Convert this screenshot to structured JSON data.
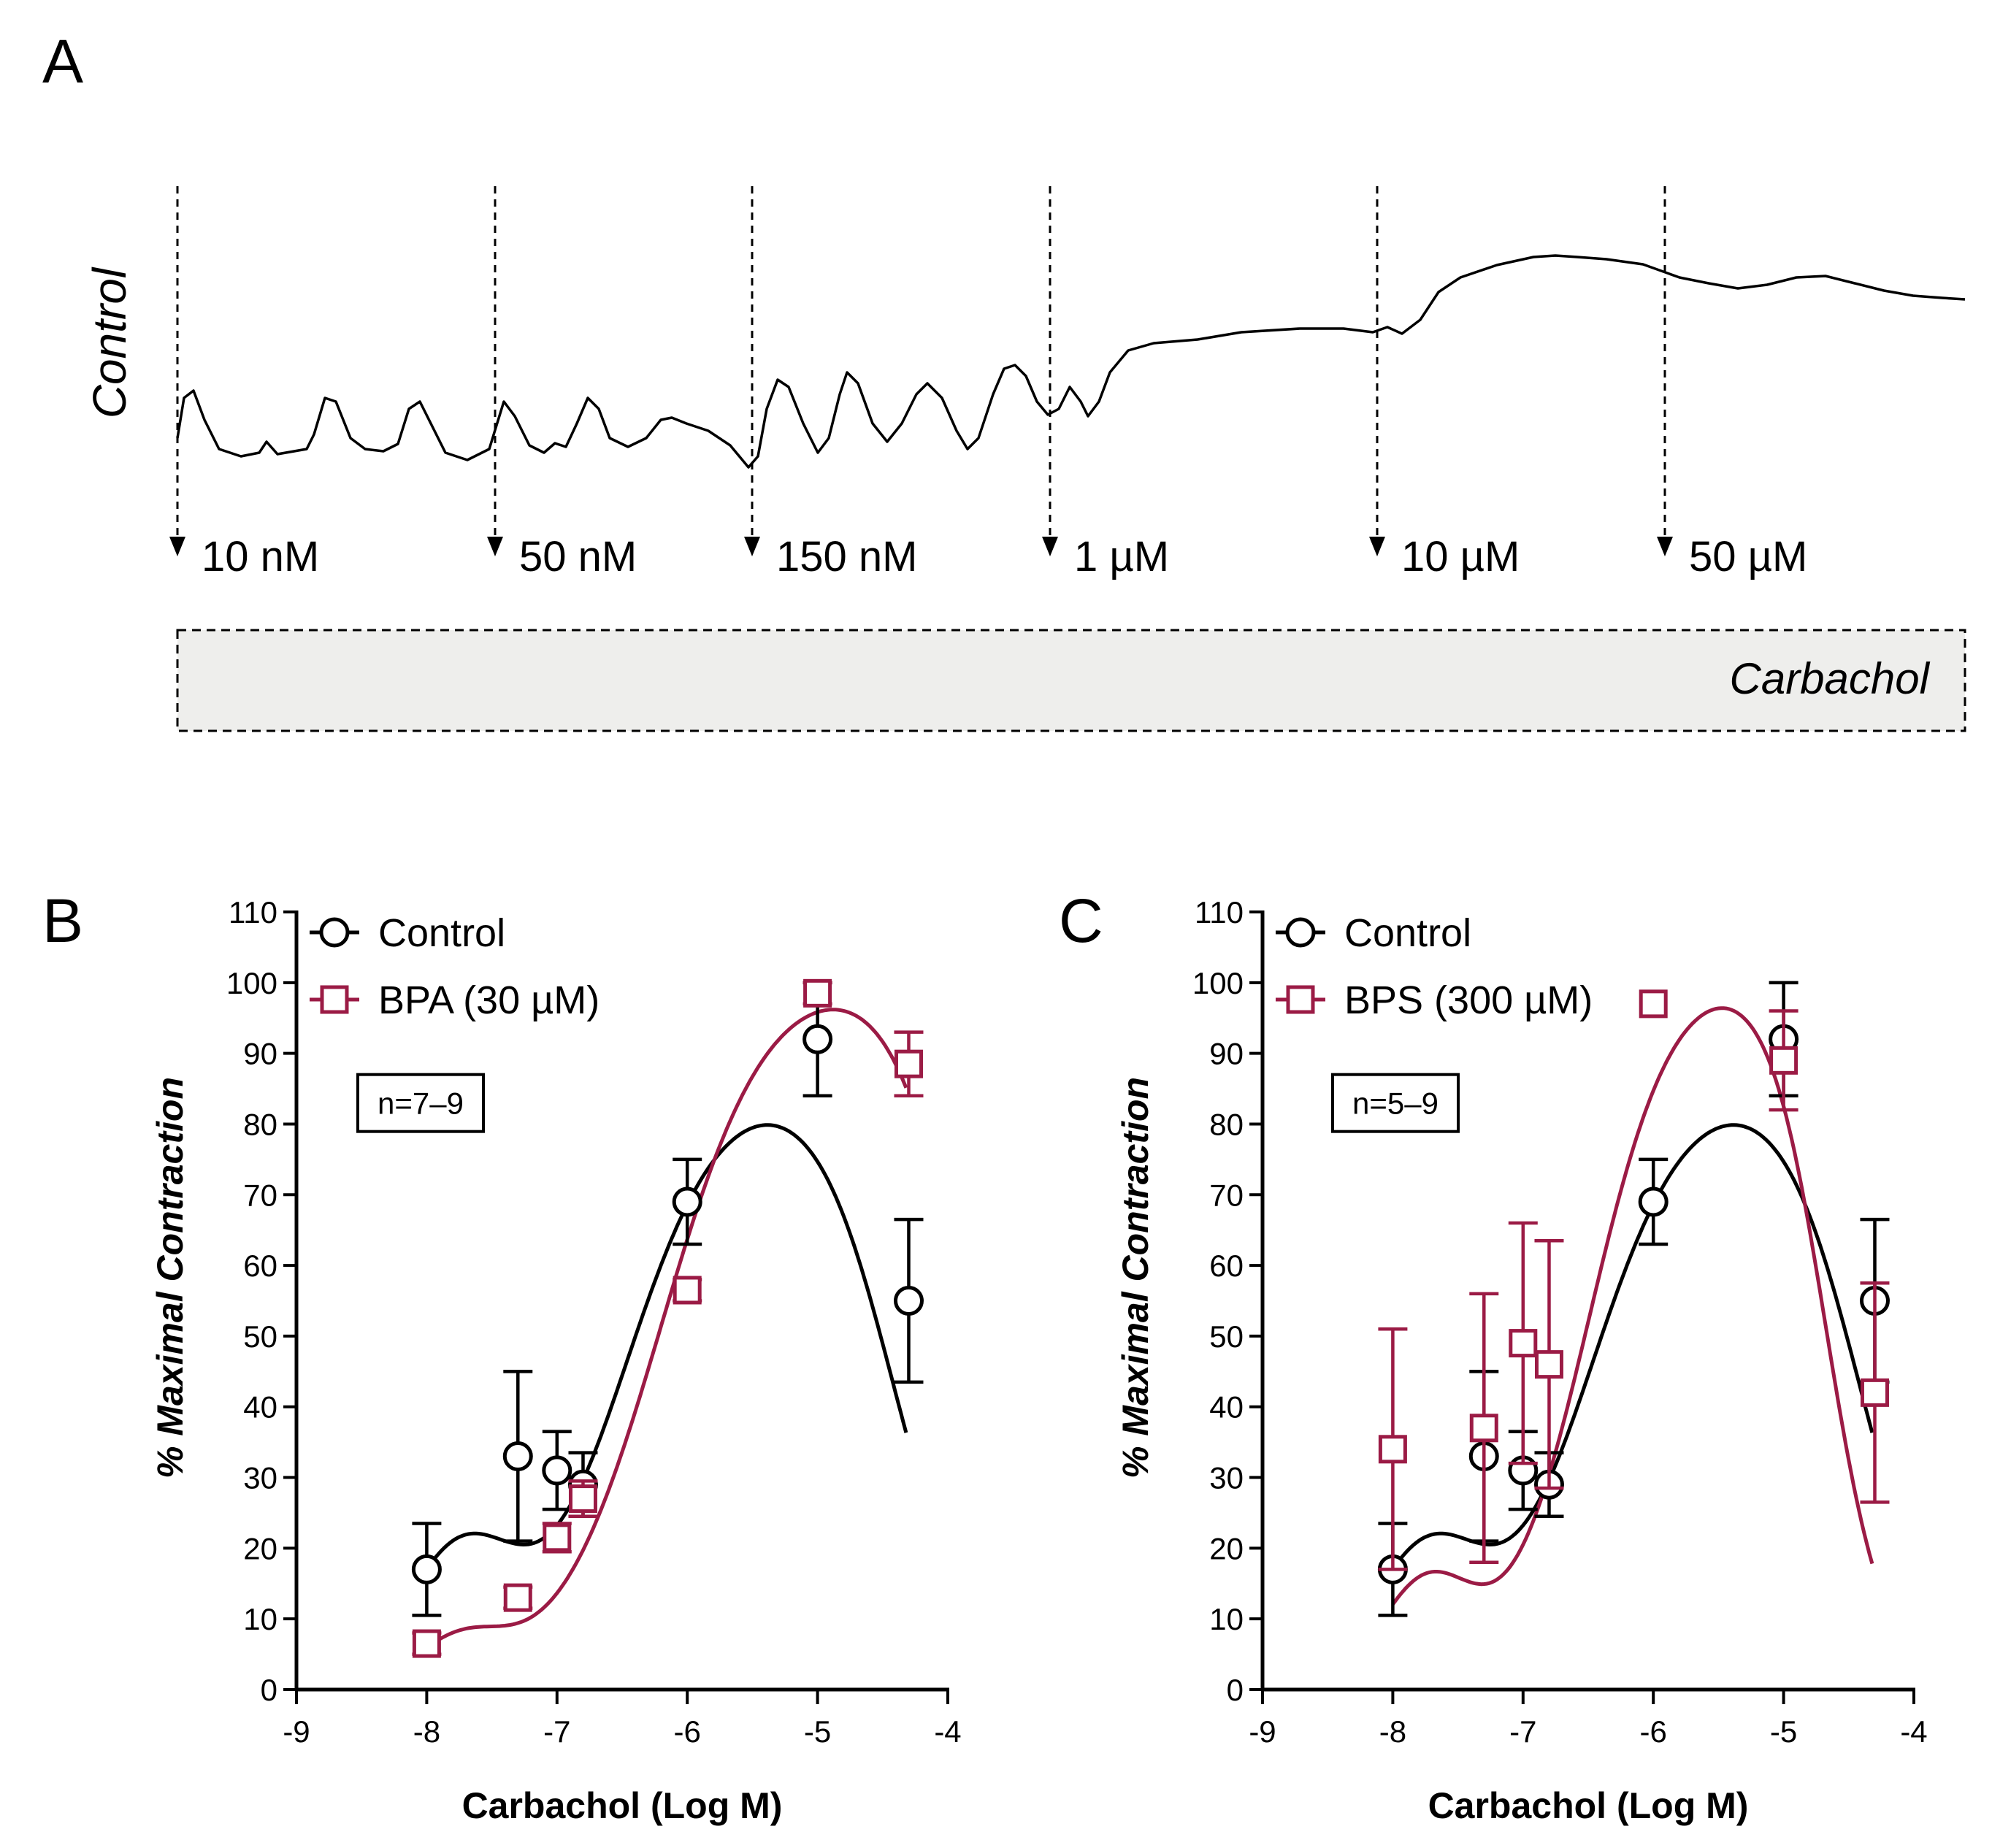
{
  "colors": {
    "control": "#000000",
    "treatment": "#9b1b45",
    "bar_fill": "#eeeeec"
  },
  "panel_a": {
    "letter": "A",
    "trace_label": "Control",
    "bar_label": "Carbachol",
    "concentrations": [
      "10 nM",
      "50 nM",
      "150 nM",
      "1 µM",
      "10 µM",
      "50 µM"
    ]
  },
  "chart_data": [
    {
      "panel": "B",
      "type": "scatter",
      "xlabel": "Carbachol (Log M)",
      "ylabel": "% Maximal Contraction",
      "xlim": [
        -9,
        -4
      ],
      "ylim": [
        0,
        110
      ],
      "xticks": [
        "-9",
        "-8",
        "-7",
        "-6",
        "-5",
        "-4"
      ],
      "yticks": [
        "0",
        "10",
        "20",
        "30",
        "40",
        "50",
        "60",
        "70",
        "80",
        "90",
        "100",
        "110"
      ],
      "annotation": "n=7–9",
      "legend_position": "top-left",
      "series": [
        {
          "name": "Control",
          "marker": "circle",
          "color_key": "control",
          "x": [
            -8,
            -7.3,
            -7,
            -6.8,
            -6,
            -5,
            -4.3
          ],
          "y": [
            17,
            33,
            31,
            29,
            69,
            92,
            55
          ],
          "err": [
            6.5,
            12,
            5.5,
            4.5,
            6,
            8,
            11.5
          ],
          "fit": {
            "peak": 88.5,
            "logEC50": -6.5,
            "hill": 1.1,
            "logIC50": -4.43,
            "hill_inh": 1.4,
            "dip_amp": 18,
            "dip_center": -7.75,
            "dip_width": 0.6
          }
        },
        {
          "name": "BPA (30 µM)",
          "marker": "square",
          "color_key": "treatment",
          "x": [
            -8,
            -7.3,
            -7,
            -6.8,
            -6,
            -5,
            -4.3
          ],
          "y": [
            6.5,
            13,
            21.5,
            27,
            56.5,
            98.5,
            88.5
          ],
          "err": [
            1.5,
            1.5,
            2,
            2.5,
            1.5,
            1.5,
            4.5
          ],
          "fit": {
            "peak": 103,
            "logEC50": -6.2,
            "hill": 1.05,
            "logIC50": -3.85,
            "hill_inh": 1.5,
            "dip_amp": 6,
            "dip_center": -7.75,
            "dip_width": 0.5
          }
        }
      ]
    },
    {
      "panel": "C",
      "type": "scatter",
      "xlabel": "Carbachol (Log M)",
      "ylabel": "% Maximal Contraction",
      "xlim": [
        -9,
        -4
      ],
      "ylim": [
        0,
        110
      ],
      "xticks": [
        "-9",
        "-8",
        "-7",
        "-6",
        "-5",
        "-4"
      ],
      "yticks": [
        "0",
        "10",
        "20",
        "30",
        "40",
        "50",
        "60",
        "70",
        "80",
        "90",
        "100",
        "110"
      ],
      "annotation": "n=5–9",
      "legend_position": "top-left",
      "series": [
        {
          "name": "Control",
          "marker": "circle",
          "color_key": "control",
          "x": [
            -8,
            -7.3,
            -7,
            -6.8,
            -6,
            -5,
            -4.3
          ],
          "y": [
            17,
            33,
            31,
            29,
            69,
            92,
            55
          ],
          "err": [
            6.5,
            12,
            5.5,
            4.5,
            6,
            8,
            11.5
          ],
          "fit": {
            "peak": 88.5,
            "logEC50": -6.5,
            "hill": 1.1,
            "logIC50": -4.43,
            "hill_inh": 1.4,
            "dip_amp": 18,
            "dip_center": -7.75,
            "dip_width": 0.6
          }
        },
        {
          "name": "BPS (300 µM)",
          "marker": "square",
          "color_key": "treatment",
          "x": [
            -8,
            -7.3,
            -7,
            -6.8,
            -6,
            -5,
            -4.3
          ],
          "y": [
            34,
            37,
            49,
            46,
            97,
            89,
            42
          ],
          "err": [
            17,
            19,
            17,
            17.5,
            0,
            7,
            15.5
          ],
          "fit": {
            "peak": 104,
            "logEC50": -6.5,
            "hill": 1.3,
            "logIC50": -4.68,
            "hill_inh": 1.9,
            "dip_amp": 14,
            "dip_center": -7.75,
            "dip_width": 0.5
          }
        }
      ]
    }
  ]
}
